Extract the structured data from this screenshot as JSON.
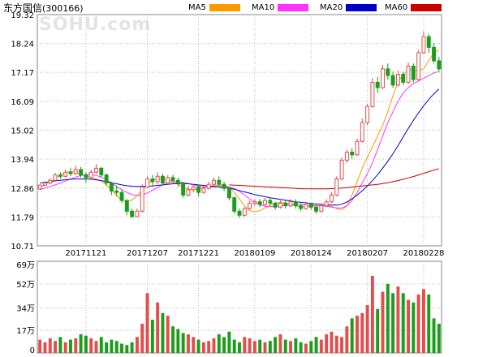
{
  "header": {
    "stock_name": "东方国信",
    "stock_code": "(300166)",
    "watermark": "SOHU.com"
  },
  "legend": [
    {
      "label": "MA5",
      "color": "#ff9900"
    },
    {
      "label": "MA10",
      "color": "#ff33ff"
    },
    {
      "label": "MA20",
      "color": "#0000cc"
    },
    {
      "label": "MA60",
      "color": "#cc0000"
    }
  ],
  "colors": {
    "up": "#e34d4d",
    "down": "#1a9e1a",
    "grid": "#bbbbbb"
  },
  "chart_data": [
    {
      "type": "candlestick",
      "title": "东方国信(300166)",
      "y_ticks": [
        "19.32",
        "18.24",
        "17.17",
        "16.09",
        "15.02",
        "13.94",
        "12.86",
        "11.79",
        "10.71"
      ],
      "ylim": [
        10.71,
        19.32
      ],
      "x_ticks": [
        {
          "label": "20171121",
          "index": 9
        },
        {
          "label": "20171207",
          "index": 21
        },
        {
          "label": "20171221",
          "index": 31
        },
        {
          "label": "20180109",
          "index": 42
        },
        {
          "label": "20180124",
          "index": 53
        },
        {
          "label": "20180207",
          "index": 64
        },
        {
          "label": "20180228",
          "index": 75
        }
      ],
      "grid": true,
      "series": [
        {
          "name": "MA5",
          "values": [
            12.9,
            12.98,
            13.1,
            13.22,
            13.35,
            13.45,
            13.48,
            13.45,
            13.38,
            13.32,
            13.25,
            13.2,
            13.12,
            12.98,
            12.8,
            12.58,
            12.4,
            12.35,
            12.42,
            12.58,
            12.78,
            13.0,
            13.15,
            13.2,
            13.22,
            13.18,
            13.1,
            13.0,
            12.9,
            12.82,
            12.8,
            12.82,
            12.88,
            12.92,
            12.95,
            12.97,
            12.98,
            12.9,
            12.7,
            12.45,
            12.2,
            12.02,
            11.98,
            12.02,
            12.12,
            12.22,
            12.3,
            12.33,
            12.31,
            12.26,
            12.2,
            12.17,
            12.16,
            12.18,
            12.19,
            12.2,
            12.2,
            12.18,
            12.1,
            12.05,
            12.2,
            12.6,
            13.1,
            13.6,
            14.0,
            14.4,
            14.8,
            15.2,
            15.7,
            16.3,
            16.8,
            17.1,
            17.25,
            17.25,
            17.22,
            17.3,
            17.6,
            17.9,
            18.0
          ]
        },
        {
          "name": "MA10",
          "values": [
            12.8,
            12.86,
            12.92,
            12.98,
            13.05,
            13.12,
            13.2,
            13.27,
            13.33,
            13.36,
            13.36,
            13.33,
            13.27,
            13.17,
            13.05,
            12.92,
            12.8,
            12.7,
            12.62,
            12.58,
            12.6,
            12.68,
            12.78,
            12.88,
            12.98,
            13.06,
            13.1,
            13.1,
            13.07,
            13.03,
            12.98,
            12.94,
            12.91,
            12.9,
            12.9,
            12.91,
            12.92,
            12.9,
            12.84,
            12.74,
            12.6,
            12.46,
            12.33,
            12.24,
            12.18,
            12.17,
            12.18,
            12.2,
            12.22,
            12.24,
            12.25,
            12.24,
            12.23,
            12.22,
            12.21,
            12.2,
            12.18,
            12.15,
            12.12,
            12.12,
            12.2,
            12.4,
            12.7,
            13.05,
            13.4,
            13.8,
            14.3,
            14.8,
            15.3,
            15.7,
            16.1,
            16.4,
            16.6,
            16.75,
            16.85,
            16.95,
            17.05,
            17.15,
            17.2
          ]
        },
        {
          "name": "MA20",
          "values": [
            13.05,
            13.07,
            13.1,
            13.13,
            13.15,
            13.17,
            13.19,
            13.2,
            13.2,
            13.2,
            13.19,
            13.17,
            13.14,
            13.1,
            13.06,
            13.02,
            12.98,
            12.95,
            12.93,
            12.92,
            12.92,
            12.93,
            12.94,
            12.96,
            12.98,
            13.0,
            13.02,
            13.03,
            13.03,
            13.02,
            13.0,
            12.98,
            12.96,
            12.94,
            12.92,
            12.9,
            12.88,
            12.86,
            12.82,
            12.77,
            12.72,
            12.67,
            12.62,
            12.58,
            12.54,
            12.5,
            12.47,
            12.44,
            12.41,
            12.38,
            12.35,
            12.33,
            12.31,
            12.29,
            12.27,
            12.25,
            12.24,
            12.23,
            12.23,
            12.26,
            12.34,
            12.46,
            12.6,
            12.76,
            12.94,
            13.14,
            13.36,
            13.6,
            13.86,
            14.14,
            14.44,
            14.76,
            15.08,
            15.38,
            15.66,
            15.92,
            16.16,
            16.37,
            16.55
          ]
        },
        {
          "name": "MA60",
          "values": [
            null,
            null,
            null,
            null,
            null,
            null,
            null,
            null,
            null,
            null,
            null,
            null,
            null,
            null,
            null,
            null,
            null,
            null,
            null,
            null,
            null,
            null,
            null,
            null,
            null,
            null,
            null,
            null,
            null,
            null,
            null,
            null,
            null,
            null,
            null,
            null,
            null,
            12.98,
            12.97,
            12.96,
            12.95,
            12.94,
            12.93,
            12.92,
            12.91,
            12.9,
            12.89,
            12.88,
            12.87,
            12.86,
            12.85,
            12.84,
            12.83,
            12.83,
            12.83,
            12.83,
            12.83,
            12.84,
            12.85,
            12.86,
            12.88,
            12.9,
            12.92,
            12.94,
            12.96,
            12.98,
            13.0,
            13.03,
            13.06,
            13.1,
            13.14,
            13.19,
            13.24,
            13.29,
            13.35,
            13.41,
            13.47,
            13.53,
            13.58
          ]
        },
        {
          "name": "candles",
          "ohlc": [
            [
              12.83,
              12.97,
              12.8,
              13.0
            ],
            [
              12.97,
              13.05,
              12.93,
              13.12
            ],
            [
              13.05,
              13.15,
              13.0,
              13.22
            ],
            [
              13.15,
              13.35,
              13.1,
              13.42
            ],
            [
              13.35,
              13.3,
              13.2,
              13.45
            ],
            [
              13.3,
              13.45,
              13.25,
              13.55
            ],
            [
              13.45,
              13.4,
              13.3,
              13.62
            ],
            [
              13.4,
              13.55,
              13.35,
              13.7
            ],
            [
              13.55,
              13.35,
              13.25,
              13.65
            ],
            [
              13.35,
              13.25,
              13.05,
              13.45
            ],
            [
              13.25,
              13.45,
              13.2,
              13.55
            ],
            [
              13.45,
              13.6,
              13.4,
              13.75
            ],
            [
              13.6,
              13.35,
              13.25,
              13.65
            ],
            [
              13.35,
              13.05,
              12.95,
              13.4
            ],
            [
              13.05,
              12.75,
              12.6,
              13.1
            ],
            [
              12.75,
              12.7,
              12.55,
              12.95
            ],
            [
              12.7,
              12.4,
              12.3,
              12.8
            ],
            [
              12.4,
              12.0,
              11.85,
              12.45
            ],
            [
              12.0,
              11.8,
              11.75,
              12.1
            ],
            [
              11.8,
              12.0,
              11.78,
              12.1
            ],
            [
              12.0,
              12.9,
              11.95,
              13.0
            ],
            [
              12.9,
              13.2,
              12.85,
              13.3
            ],
            [
              13.2,
              13.1,
              12.95,
              13.35
            ],
            [
              13.1,
              13.3,
              13.0,
              13.45
            ],
            [
              13.3,
              13.05,
              12.95,
              13.4
            ],
            [
              13.05,
              13.25,
              13.0,
              13.35
            ],
            [
              13.25,
              13.15,
              13.05,
              13.35
            ],
            [
              13.15,
              13.05,
              12.9,
              13.25
            ],
            [
              13.05,
              12.6,
              12.5,
              13.1
            ],
            [
              12.6,
              12.8,
              12.55,
              12.95
            ],
            [
              12.8,
              12.9,
              12.7,
              13.0
            ],
            [
              12.9,
              12.7,
              12.55,
              13.0
            ],
            [
              12.7,
              12.85,
              12.65,
              12.95
            ],
            [
              12.85,
              13.0,
              12.8,
              13.1
            ],
            [
              13.0,
              13.15,
              12.9,
              13.25
            ],
            [
              13.15,
              13.0,
              12.9,
              13.3
            ],
            [
              13.0,
              12.85,
              12.75,
              13.1
            ],
            [
              12.85,
              12.5,
              12.4,
              12.9
            ],
            [
              12.5,
              12.0,
              11.9,
              12.55
            ],
            [
              12.0,
              11.85,
              11.75,
              12.1
            ],
            [
              11.85,
              12.1,
              11.8,
              12.15
            ],
            [
              12.1,
              12.3,
              12.05,
              12.4
            ],
            [
              12.3,
              12.35,
              12.2,
              12.45
            ],
            [
              12.35,
              12.25,
              12.15,
              12.45
            ],
            [
              12.25,
              12.4,
              12.2,
              12.5
            ],
            [
              12.4,
              12.3,
              12.2,
              12.5
            ],
            [
              12.3,
              12.15,
              12.05,
              12.35
            ],
            [
              12.15,
              12.3,
              12.1,
              12.4
            ],
            [
              12.3,
              12.2,
              12.1,
              12.4
            ],
            [
              12.2,
              12.35,
              12.15,
              12.45
            ],
            [
              12.35,
              12.2,
              12.1,
              12.45
            ],
            [
              12.2,
              12.1,
              12.0,
              12.3
            ],
            [
              12.1,
              12.25,
              12.05,
              12.35
            ],
            [
              12.25,
              12.15,
              12.05,
              12.3
            ],
            [
              12.15,
              12.0,
              11.9,
              12.2
            ],
            [
              12.0,
              12.2,
              11.95,
              12.3
            ],
            [
              12.2,
              12.35,
              12.15,
              12.45
            ],
            [
              12.35,
              12.6,
              12.3,
              12.7
            ],
            [
              12.6,
              13.2,
              12.55,
              13.3
            ],
            [
              13.2,
              13.9,
              13.15,
              14.0
            ],
            [
              13.9,
              14.2,
              13.8,
              14.3
            ],
            [
              14.2,
              14.1,
              13.95,
              14.35
            ],
            [
              14.1,
              14.6,
              14.05,
              14.7
            ],
            [
              14.6,
              15.3,
              14.55,
              15.45
            ],
            [
              15.3,
              15.9,
              15.2,
              16.0
            ],
            [
              15.9,
              16.8,
              15.85,
              16.95
            ],
            [
              16.8,
              16.6,
              16.4,
              17.0
            ],
            [
              16.6,
              17.3,
              16.55,
              17.45
            ],
            [
              17.3,
              17.05,
              16.9,
              17.5
            ],
            [
              17.05,
              16.7,
              16.6,
              17.2
            ],
            [
              16.7,
              17.1,
              16.65,
              17.25
            ],
            [
              17.1,
              16.8,
              16.7,
              17.2
            ],
            [
              16.8,
              17.4,
              16.75,
              17.55
            ],
            [
              17.4,
              16.9,
              16.8,
              17.5
            ],
            [
              16.9,
              17.9,
              16.85,
              18.0
            ],
            [
              17.9,
              18.5,
              17.85,
              18.7
            ],
            [
              18.5,
              18.1,
              17.9,
              18.6
            ],
            [
              18.1,
              17.6,
              17.5,
              18.25
            ],
            [
              17.6,
              17.3,
              17.2,
              17.75
            ]
          ]
        }
      ]
    },
    {
      "type": "bar",
      "title": "",
      "y_ticks": [
        "69万",
        "52万",
        "34万",
        "17万",
        "0"
      ],
      "ylim": [
        0,
        69
      ],
      "units": "万",
      "grid": true,
      "series": [
        {
          "name": "volume",
          "values": [
            10,
            8,
            11,
            9,
            12,
            8,
            10,
            11,
            14,
            13,
            11,
            9,
            12,
            8,
            10,
            9,
            7,
            6,
            8,
            12,
            22,
            45,
            25,
            38,
            30,
            28,
            20,
            18,
            15,
            14,
            12,
            10,
            8,
            9,
            11,
            14,
            12,
            16,
            10,
            8,
            12,
            11,
            9,
            10,
            8,
            9,
            12,
            14,
            10,
            9,
            11,
            8,
            7,
            9,
            12,
            10,
            14,
            16,
            13,
            12,
            20,
            26,
            28,
            30,
            36,
            58,
            33,
            46,
            52,
            45,
            50,
            45,
            40,
            38,
            44,
            48,
            44,
            26,
            22
          ]
        }
      ]
    }
  ]
}
